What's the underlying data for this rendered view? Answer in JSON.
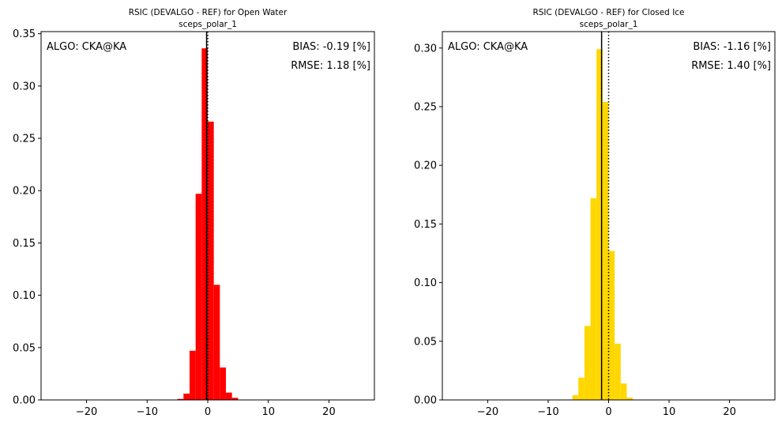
{
  "chart_data": [
    {
      "type": "bar",
      "title": "RSIC (DEVALGO - REF) for Open Water",
      "subtitle": "sceps_polar_1",
      "xlabel": "",
      "ylabel": "",
      "xlim": [
        -27.5,
        27.5
      ],
      "ylim": [
        0,
        0.352
      ],
      "xticks": [
        -20,
        -10,
        0,
        10,
        20
      ],
      "xtick_labels": [
        "−20",
        "−10",
        "0",
        "10",
        "20"
      ],
      "yticks": [
        0.0,
        0.05,
        0.1,
        0.15,
        0.2,
        0.25,
        0.3,
        0.35
      ],
      "ytick_labels": [
        "0.00",
        "0.05",
        "0.10",
        "0.15",
        "0.20",
        "0.25",
        "0.30",
        "0.35"
      ],
      "bin_width": 1,
      "bins": [
        {
          "x0": -5,
          "x1": -4,
          "value": 0.001
        },
        {
          "x0": -4,
          "x1": -3,
          "value": 0.006
        },
        {
          "x0": -3,
          "x1": -2,
          "value": 0.047
        },
        {
          "x0": -2,
          "x1": -1,
          "value": 0.197
        },
        {
          "x0": -1,
          "x1": 0,
          "value": 0.336
        },
        {
          "x0": 0,
          "x1": 1,
          "value": 0.266
        },
        {
          "x0": 1,
          "x1": 2,
          "value": 0.11
        },
        {
          "x0": 2,
          "x1": 3,
          "value": 0.031
        },
        {
          "x0": 3,
          "x1": 4,
          "value": 0.007
        },
        {
          "x0": 4,
          "x1": 5,
          "value": 0.002
        }
      ],
      "bar_color": "#ff0000",
      "bias_line_x": -0.19,
      "zero_line_x": 0,
      "annotations": {
        "algo": "ALGO: CKA@KA",
        "bias": "BIAS: -0.19 [%]",
        "rmse": "RMSE: 1.18 [%]"
      },
      "grid": false
    },
    {
      "type": "bar",
      "title": "RSIC (DEVALGO - REF) for Closed Ice",
      "subtitle": "sceps_polar_1",
      "xlabel": "",
      "ylabel": "",
      "xlim": [
        -27.5,
        27.5
      ],
      "ylim": [
        0,
        0.314
      ],
      "xticks": [
        -20,
        -10,
        0,
        10,
        20
      ],
      "xtick_labels": [
        "−20",
        "−10",
        "0",
        "10",
        "20"
      ],
      "yticks": [
        0.0,
        0.05,
        0.1,
        0.15,
        0.2,
        0.25,
        0.3
      ],
      "ytick_labels": [
        "0.00",
        "0.05",
        "0.10",
        "0.15",
        "0.20",
        "0.25",
        "0.30"
      ],
      "bin_width": 1,
      "bins": [
        {
          "x0": -6,
          "x1": -5,
          "value": 0.004
        },
        {
          "x0": -5,
          "x1": -4,
          "value": 0.019
        },
        {
          "x0": -4,
          "x1": -3,
          "value": 0.063
        },
        {
          "x0": -3,
          "x1": -2,
          "value": 0.172
        },
        {
          "x0": -2,
          "x1": -1,
          "value": 0.299
        },
        {
          "x0": -1,
          "x1": 0,
          "value": 0.254
        },
        {
          "x0": 0,
          "x1": 1,
          "value": 0.127
        },
        {
          "x0": 1,
          "x1": 2,
          "value": 0.048
        },
        {
          "x0": 2,
          "x1": 3,
          "value": 0.014
        },
        {
          "x0": 3,
          "x1": 4,
          "value": 0.002
        }
      ],
      "bar_color": "#ffd700",
      "bias_line_x": -1.16,
      "zero_line_x": 0,
      "annotations": {
        "algo": "ALGO: CKA@KA",
        "bias": "BIAS: -1.16 [%]",
        "rmse": "RMSE: 1.40 [%]"
      },
      "grid": false
    }
  ]
}
